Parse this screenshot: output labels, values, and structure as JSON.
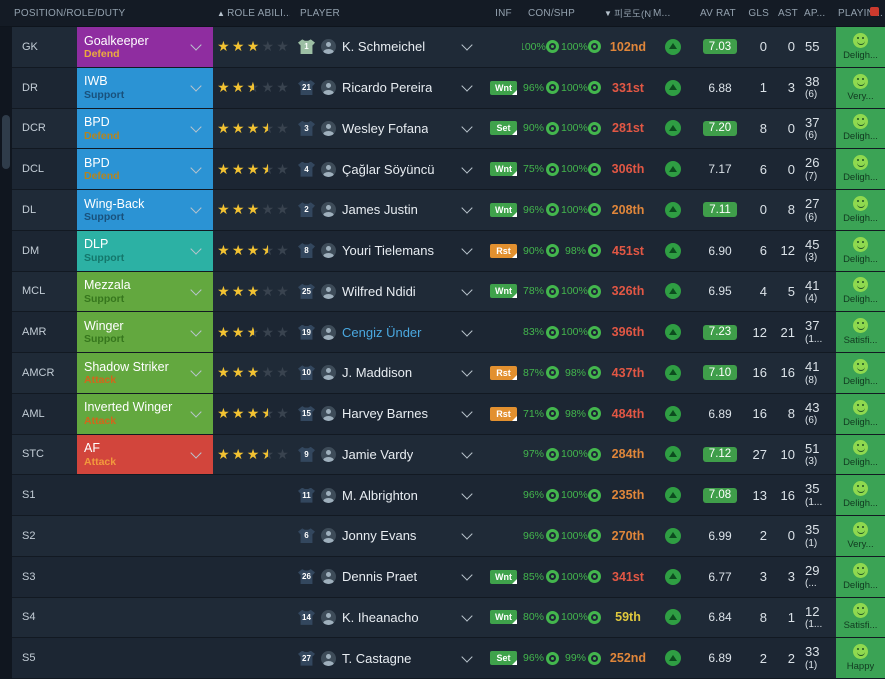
{
  "header": {
    "position": "POSITION/ROLE/DUTY",
    "sort_up": "▲",
    "role_ability": "ROLE ABILI...",
    "player": "PLAYER",
    "inf": "INF",
    "con_shp": "CON/SHP",
    "sort_down": "▼",
    "fatigue": "피로도(N)",
    "morale_short": "M...",
    "av_rat": "AV RAT",
    "gls": "GLS",
    "ast": "AST",
    "apps": "AP...",
    "playing": "PLAYIN..."
  },
  "colors": {
    "condition_green": "#43b64d",
    "morale_strip_green": "#3ba355",
    "rating_badge_green": "#3f9e4a",
    "trend_circle_green": "#2f9e43",
    "rank_orange": "#e0863a",
    "rank_red": "#e25744",
    "rank_yellow": "#dfc83d",
    "star_gold": "#f2c232"
  },
  "rows": [
    {
      "pos": "GK",
      "role": "Goalkeeper",
      "duty": "Defend",
      "role_bg": "#8f2da0",
      "duty_color": "#ecab3e",
      "stars": 3,
      "shirt_number": "1",
      "shirt_color": "#9dbfa4",
      "name": "K. Schmeichel",
      "name_color": "",
      "inf": "",
      "con": "100%",
      "shp": "100%",
      "rank": "102nd",
      "rank_color": "#e0863a",
      "av_rat": "7.03",
      "av_badge": true,
      "gls": "0",
      "ast": "0",
      "app": "55",
      "app_sub": "",
      "mood": "Deligh..."
    },
    {
      "pos": "DR",
      "role": "IWB",
      "duty": "Support",
      "role_bg": "#2b93d4",
      "duty_color": "#19517c",
      "stars": 2.5,
      "shirt_number": "21",
      "shirt_color": "#33475e",
      "name": "Ricardo Pereira",
      "name_color": "",
      "inf": "Wnt",
      "con": "96%",
      "shp": "100%",
      "rank": "331st",
      "rank_color": "#e25744",
      "av_rat": "6.88",
      "av_badge": false,
      "gls": "1",
      "ast": "3",
      "app": "38",
      "app_sub": "(6)",
      "mood": "Very..."
    },
    {
      "pos": "DCR",
      "role": "BPD",
      "duty": "Defend",
      "role_bg": "#2b93d4",
      "duty_color": "#b5851f",
      "stars": 3.5,
      "shirt_number": "3",
      "shirt_color": "#33475e",
      "name": "Wesley Fofana",
      "name_color": "",
      "inf": "Set",
      "con": "90%",
      "shp": "100%",
      "rank": "281st",
      "rank_color": "#e25744",
      "av_rat": "7.20",
      "av_badge": true,
      "gls": "8",
      "ast": "0",
      "app": "37",
      "app_sub": "(6)",
      "mood": "Deligh..."
    },
    {
      "pos": "DCL",
      "role": "BPD",
      "duty": "Defend",
      "role_bg": "#2b93d4",
      "duty_color": "#b5851f",
      "stars": 3.5,
      "shirt_number": "4",
      "shirt_color": "#33475e",
      "name": "Çağlar Söyüncü",
      "name_color": "",
      "inf": "Wnt",
      "con": "75%",
      "shp": "100%",
      "rank": "306th",
      "rank_color": "#e25744",
      "av_rat": "7.17",
      "av_badge": false,
      "gls": "6",
      "ast": "0",
      "app": "26",
      "app_sub": "(7)",
      "mood": "Deligh..."
    },
    {
      "pos": "DL",
      "role": "Wing-Back",
      "duty": "Support",
      "role_bg": "#2b93d4",
      "duty_color": "#19517c",
      "stars": 3,
      "shirt_number": "2",
      "shirt_color": "#33475e",
      "name": "James Justin",
      "name_color": "",
      "inf": "Wnt",
      "con": "96%",
      "shp": "100%",
      "rank": "208th",
      "rank_color": "#e0863a",
      "av_rat": "7.11",
      "av_badge": true,
      "gls": "0",
      "ast": "8",
      "app": "27",
      "app_sub": "(6)",
      "mood": "Deligh..."
    },
    {
      "pos": "DM",
      "role": "DLP",
      "duty": "Support",
      "role_bg": "#2cb1a4",
      "duty_color": "#14776b",
      "stars": 3.5,
      "shirt_number": "8",
      "shirt_color": "#33475e",
      "name": "Youri Tielemans",
      "name_color": "",
      "inf": "Rst",
      "con": "90%",
      "shp": "98%",
      "rank": "451st",
      "rank_color": "#e25744",
      "av_rat": "6.90",
      "av_badge": false,
      "gls": "6",
      "ast": "12",
      "app": "45",
      "app_sub": "(3)",
      "mood": "Deligh..."
    },
    {
      "pos": "MCL",
      "role": "Mezzala",
      "duty": "Support",
      "role_bg": "#63a83f",
      "duty_color": "#36761d",
      "stars": 3,
      "shirt_number": "25",
      "shirt_color": "#33475e",
      "name": "Wilfred Ndidi",
      "name_color": "",
      "inf": "Wnt",
      "con": "78%",
      "shp": "100%",
      "rank": "326th",
      "rank_color": "#e25744",
      "av_rat": "6.95",
      "av_badge": false,
      "gls": "4",
      "ast": "5",
      "app": "41",
      "app_sub": "(4)",
      "mood": "Deligh..."
    },
    {
      "pos": "AMR",
      "role": "Winger",
      "duty": "Support",
      "role_bg": "#63a83f",
      "duty_color": "#36761d",
      "stars": 2.5,
      "shirt_number": "19",
      "shirt_color": "#33475e",
      "name": "Cengiz Ünder",
      "name_color": "#4aa8e0",
      "inf": "",
      "con": "83%",
      "shp": "100%",
      "rank": "396th",
      "rank_color": "#e25744",
      "av_rat": "7.23",
      "av_badge": true,
      "gls": "12",
      "ast": "21",
      "app": "37",
      "app_sub": "(1...",
      "mood": "Satisfi..."
    },
    {
      "pos": "AMCR",
      "role": "Shadow Striker",
      "duty": "Attack",
      "role_bg": "#63a83f",
      "duty_color": "#d2661c",
      "stars": 3,
      "shirt_number": "10",
      "shirt_color": "#33475e",
      "name": "J. Maddison",
      "name_color": "",
      "inf": "Rst",
      "con": "87%",
      "shp": "98%",
      "rank": "437th",
      "rank_color": "#e25744",
      "av_rat": "7.10",
      "av_badge": true,
      "gls": "16",
      "ast": "16",
      "app": "41",
      "app_sub": "(8)",
      "mood": "Deligh..."
    },
    {
      "pos": "AML",
      "role": "Inverted Winger",
      "duty": "Attack",
      "role_bg": "#63a83f",
      "duty_color": "#d2661c",
      "stars": 3.5,
      "shirt_number": "15",
      "shirt_color": "#33475e",
      "name": "Harvey Barnes",
      "name_color": "",
      "inf": "Rst",
      "con": "71%",
      "shp": "98%",
      "rank": "484th",
      "rank_color": "#e25744",
      "av_rat": "6.89",
      "av_badge": false,
      "gls": "16",
      "ast": "8",
      "app": "43",
      "app_sub": "(6)",
      "mood": "Deligh..."
    },
    {
      "pos": "STC",
      "role": "AF",
      "duty": "Attack",
      "role_bg": "#d2453c",
      "duty_color": "#f29a3c",
      "stars": 3.5,
      "shirt_number": "9",
      "shirt_color": "#33475e",
      "name": "Jamie Vardy",
      "name_color": "",
      "inf": "",
      "con": "97%",
      "shp": "100%",
      "rank": "284th",
      "rank_color": "#e0863a",
      "av_rat": "7.12",
      "av_badge": true,
      "gls": "27",
      "ast": "10",
      "app": "51",
      "app_sub": "(3)",
      "mood": "Deligh..."
    },
    {
      "pos": "S1",
      "role": "",
      "duty": "",
      "role_bg": "",
      "duty_color": "",
      "stars": 0,
      "shirt_number": "11",
      "shirt_color": "#33475e",
      "name": "M. Albrighton",
      "name_color": "",
      "inf": "",
      "con": "96%",
      "shp": "100%",
      "rank": "235th",
      "rank_color": "#e0863a",
      "av_rat": "7.08",
      "av_badge": true,
      "gls": "13",
      "ast": "16",
      "app": "35",
      "app_sub": "(1...",
      "mood": "Deligh..."
    },
    {
      "pos": "S2",
      "role": "",
      "duty": "",
      "role_bg": "",
      "duty_color": "",
      "stars": 0,
      "shirt_number": "6",
      "shirt_color": "#33475e",
      "name": "Jonny Evans",
      "name_color": "",
      "inf": "",
      "con": "96%",
      "shp": "100%",
      "rank": "270th",
      "rank_color": "#e0863a",
      "av_rat": "6.99",
      "av_badge": false,
      "gls": "2",
      "ast": "0",
      "app": "35",
      "app_sub": "(1)",
      "mood": "Very..."
    },
    {
      "pos": "S3",
      "role": "",
      "duty": "",
      "role_bg": "",
      "duty_color": "",
      "stars": 0,
      "shirt_number": "26",
      "shirt_color": "#33475e",
      "name": "Dennis Praet",
      "name_color": "",
      "inf": "Wnt",
      "con": "85%",
      "shp": "100%",
      "rank": "341st",
      "rank_color": "#e25744",
      "av_rat": "6.77",
      "av_badge": false,
      "gls": "3",
      "ast": "3",
      "app": "29",
      "app_sub": "(...",
      "mood": "Deligh..."
    },
    {
      "pos": "S4",
      "role": "",
      "duty": "",
      "role_bg": "",
      "duty_color": "",
      "stars": 0,
      "shirt_number": "14",
      "shirt_color": "#33475e",
      "name": "K. Iheanacho",
      "name_color": "",
      "inf": "Wnt",
      "con": "80%",
      "shp": "100%",
      "rank": "59th",
      "rank_color": "#dfc83d",
      "av_rat": "6.84",
      "av_badge": false,
      "gls": "8",
      "ast": "1",
      "app": "12",
      "app_sub": "(1...",
      "mood": "Satisfi..."
    },
    {
      "pos": "S5",
      "role": "",
      "duty": "",
      "role_bg": "",
      "duty_color": "",
      "stars": 0,
      "shirt_number": "27",
      "shirt_color": "#33475e",
      "name": "T. Castagne",
      "name_color": "",
      "inf": "Set",
      "con": "96%",
      "shp": "99%",
      "rank": "252nd",
      "rank_color": "#e0863a",
      "av_rat": "6.89",
      "av_badge": false,
      "gls": "2",
      "ast": "2",
      "app": "33",
      "app_sub": "(1)",
      "mood": "Happy"
    }
  ]
}
